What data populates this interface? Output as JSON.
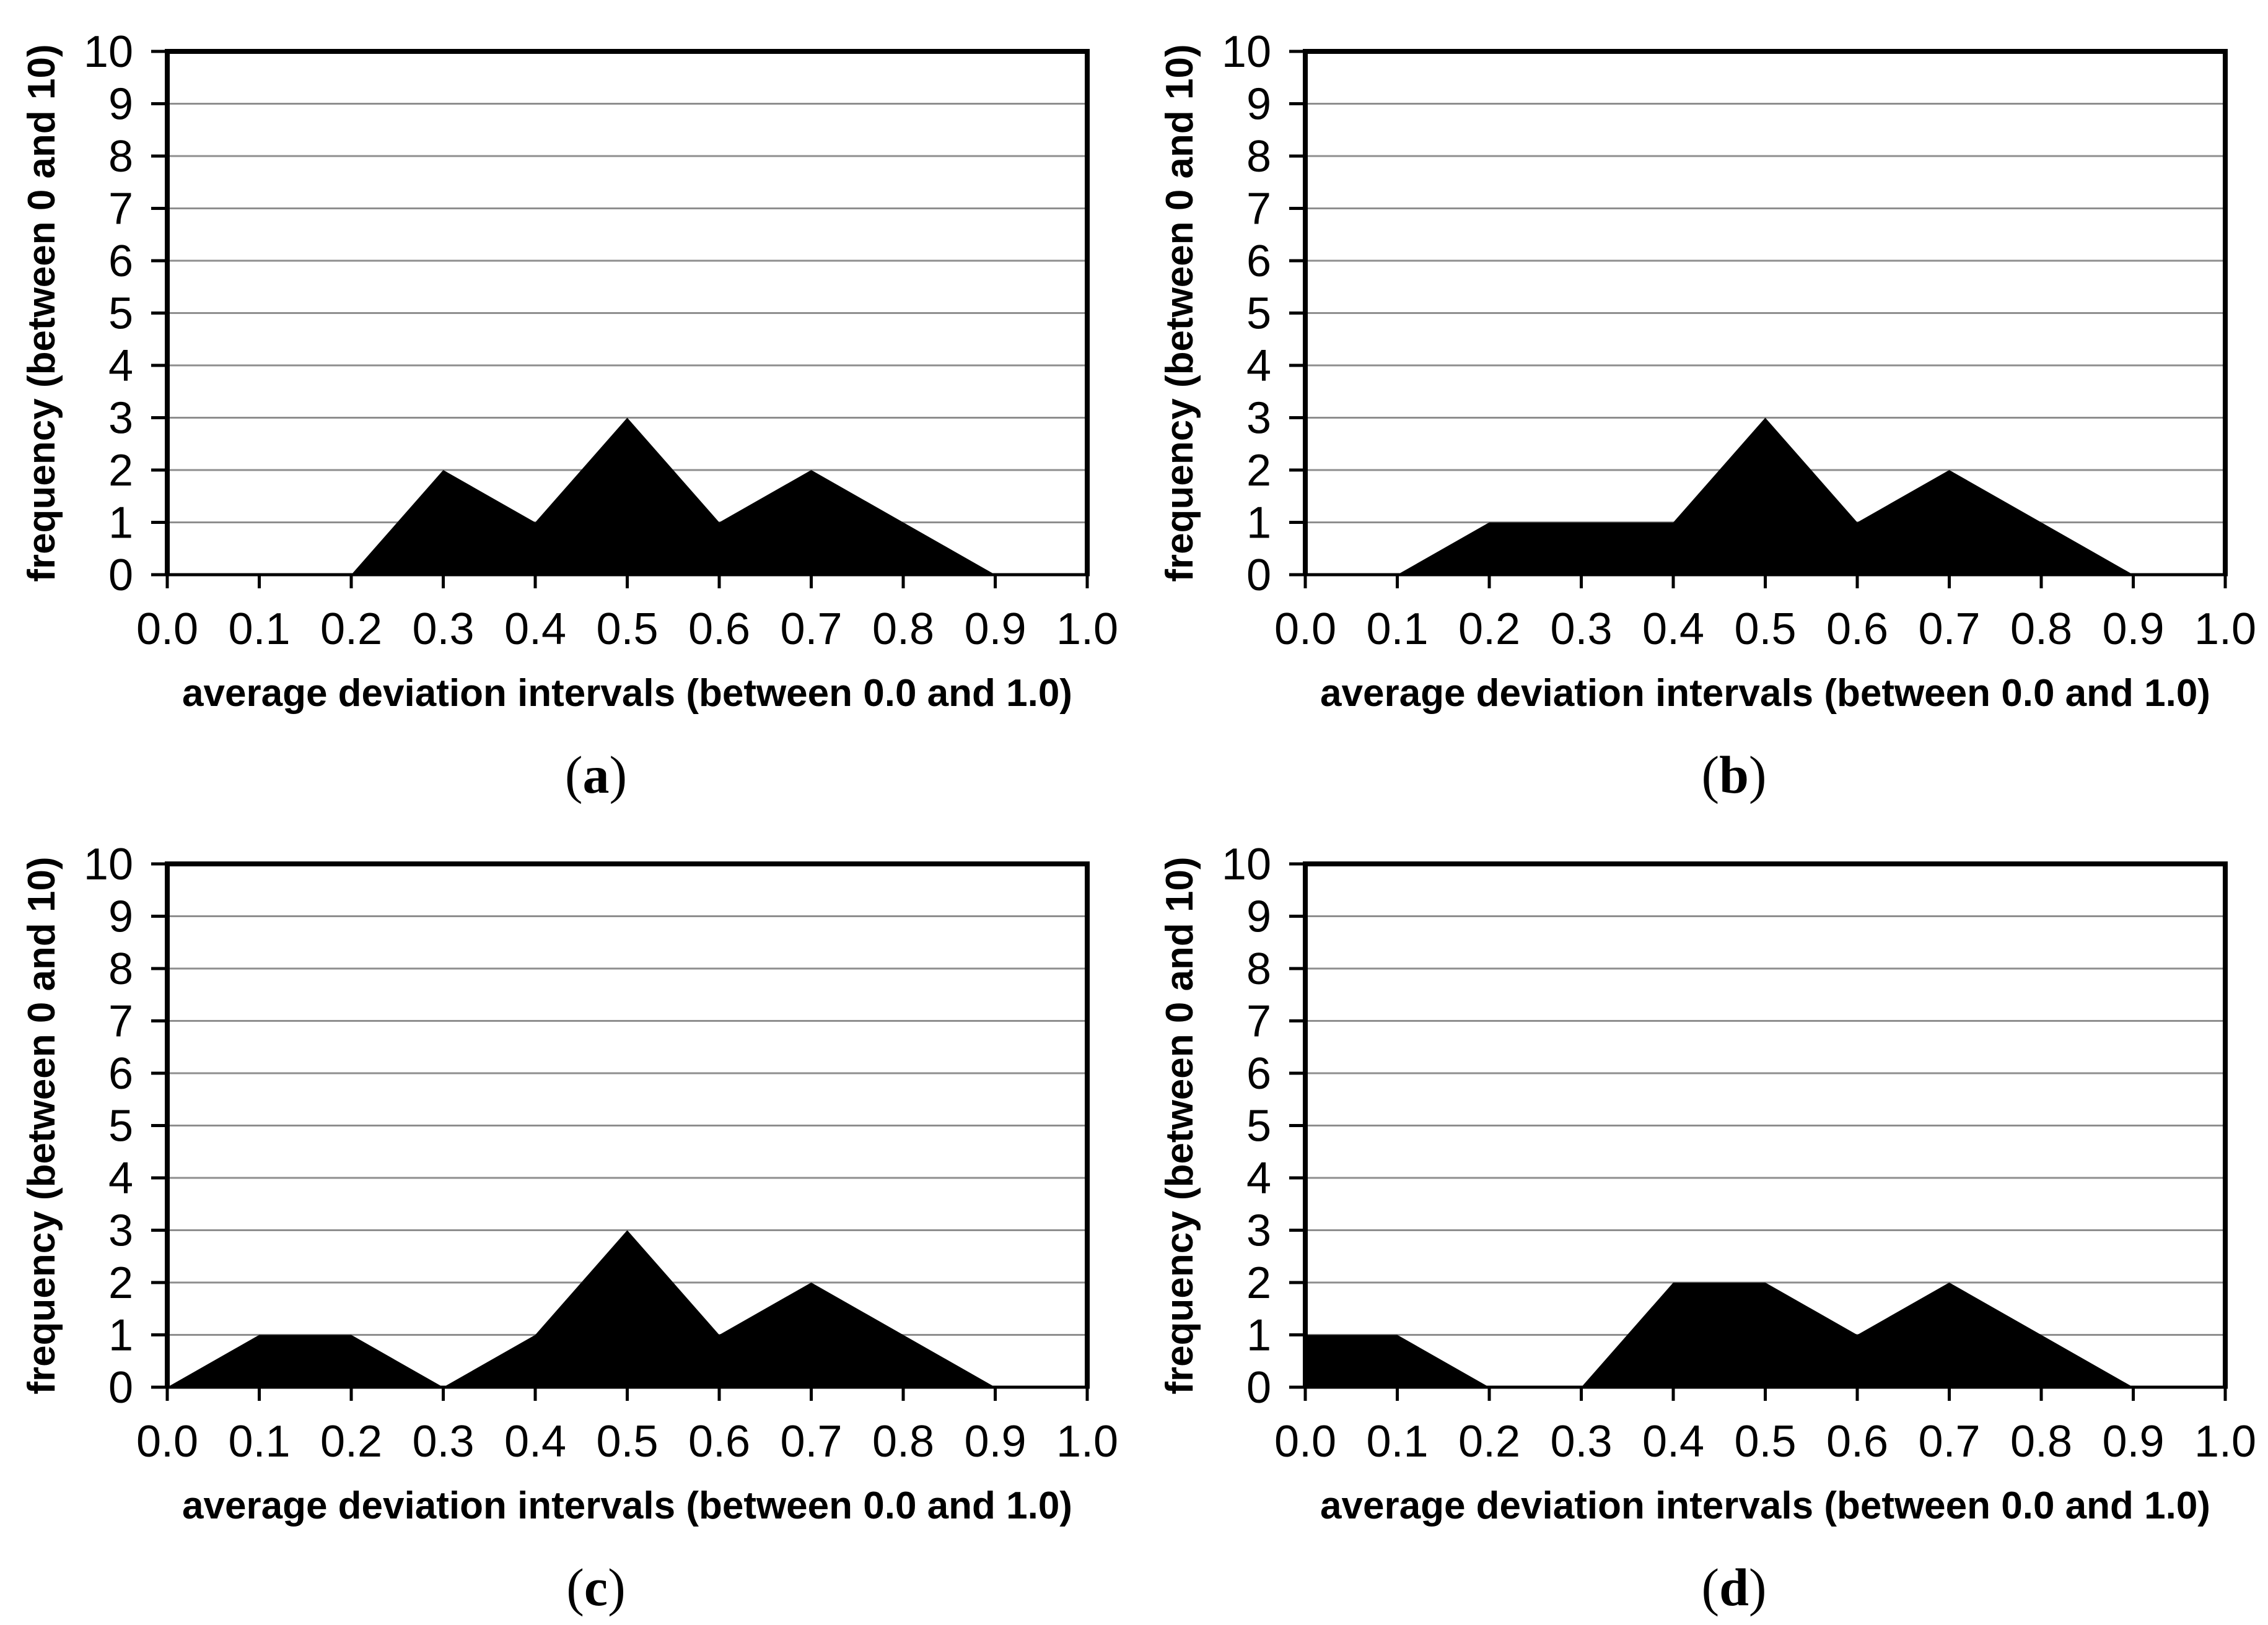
{
  "page": {
    "background_color": "#ffffff",
    "text_color": "#000000"
  },
  "chart_data": [
    {
      "panel": "a",
      "type": "area",
      "caption": {
        "open": "(",
        "letter": "a",
        "close": ")"
      },
      "xlabel": "average deviation intervals (between 0.0 and 1.0)",
      "ylabel": "frequency (between 0 and 10)",
      "x": [
        0.0,
        0.1,
        0.2,
        0.3,
        0.4,
        0.5,
        0.6,
        0.7,
        0.8,
        0.9,
        1.0
      ],
      "values": [
        0,
        0,
        0,
        2,
        1,
        3,
        1,
        2,
        1,
        0,
        0
      ],
      "xlim": [
        0.0,
        1.0
      ],
      "ylim": [
        0,
        10
      ],
      "x_tick_labels": [
        "0.0",
        "0.1",
        "0.2",
        "0.3",
        "0.4",
        "0.5",
        "0.6",
        "0.7",
        "0.8",
        "0.9",
        "1.0"
      ],
      "y_tick_labels": [
        "0",
        "1",
        "2",
        "3",
        "4",
        "5",
        "6",
        "7",
        "8",
        "9",
        "10"
      ],
      "grid": "horizontal",
      "legend": "none",
      "area_color": "#000000",
      "gridline_color": "#8e8e8e",
      "axis_color": "#000000"
    },
    {
      "panel": "b",
      "type": "area",
      "caption": {
        "open": "(",
        "letter": "b",
        "close": ")"
      },
      "xlabel": "average deviation intervals (between 0.0 and 1.0)",
      "ylabel": "frequency (between 0 and 10)",
      "x": [
        0.0,
        0.1,
        0.2,
        0.3,
        0.4,
        0.5,
        0.6,
        0.7,
        0.8,
        0.9,
        1.0
      ],
      "values": [
        0,
        0,
        1,
        1,
        1,
        3,
        1,
        2,
        1,
        0,
        0
      ],
      "xlim": [
        0.0,
        1.0
      ],
      "ylim": [
        0,
        10
      ],
      "x_tick_labels": [
        "0.0",
        "0.1",
        "0.2",
        "0.3",
        "0.4",
        "0.5",
        "0.6",
        "0.7",
        "0.8",
        "0.9",
        "1.0"
      ],
      "y_tick_labels": [
        "0",
        "1",
        "2",
        "3",
        "4",
        "5",
        "6",
        "7",
        "8",
        "9",
        "10"
      ],
      "grid": "horizontal",
      "legend": "none",
      "area_color": "#000000",
      "gridline_color": "#8e8e8e",
      "axis_color": "#000000"
    },
    {
      "panel": "c",
      "type": "area",
      "caption": {
        "open": "(",
        "letter": "c",
        "close": ")"
      },
      "xlabel": "average deviation intervals (between 0.0 and 1.0)",
      "ylabel": "frequency (between 0 and 10)",
      "x": [
        0.0,
        0.1,
        0.2,
        0.3,
        0.4,
        0.5,
        0.6,
        0.7,
        0.8,
        0.9,
        1.0
      ],
      "values": [
        0,
        1,
        1,
        0,
        1,
        3,
        1,
        2,
        1,
        0,
        0
      ],
      "xlim": [
        0.0,
        1.0
      ],
      "ylim": [
        0,
        10
      ],
      "x_tick_labels": [
        "0.0",
        "0.1",
        "0.2",
        "0.3",
        "0.4",
        "0.5",
        "0.6",
        "0.7",
        "0.8",
        "0.9",
        "1.0"
      ],
      "y_tick_labels": [
        "0",
        "1",
        "2",
        "3",
        "4",
        "5",
        "6",
        "7",
        "8",
        "9",
        "10"
      ],
      "grid": "horizontal",
      "legend": "none",
      "area_color": "#000000",
      "gridline_color": "#8e8e8e",
      "axis_color": "#000000"
    },
    {
      "panel": "d",
      "type": "area",
      "caption": {
        "open": "(",
        "letter": "d",
        "close": ")"
      },
      "xlabel": "average deviation intervals (between 0.0 and 1.0)",
      "ylabel": "frequency (between 0 and 10)",
      "x": [
        0.0,
        0.1,
        0.2,
        0.3,
        0.4,
        0.5,
        0.6,
        0.7,
        0.8,
        0.9,
        1.0
      ],
      "values": [
        1,
        1,
        0,
        0,
        2,
        2,
        1,
        2,
        1,
        0,
        0
      ],
      "xlim": [
        0.0,
        1.0
      ],
      "ylim": [
        0,
        10
      ],
      "x_tick_labels": [
        "0.0",
        "0.1",
        "0.2",
        "0.3",
        "0.4",
        "0.5",
        "0.6",
        "0.7",
        "0.8",
        "0.9",
        "1.0"
      ],
      "y_tick_labels": [
        "0",
        "1",
        "2",
        "3",
        "4",
        "5",
        "6",
        "7",
        "8",
        "9",
        "10"
      ],
      "grid": "horizontal",
      "legend": "none",
      "area_color": "#000000",
      "gridline_color": "#8e8e8e",
      "axis_color": "#000000"
    }
  ]
}
